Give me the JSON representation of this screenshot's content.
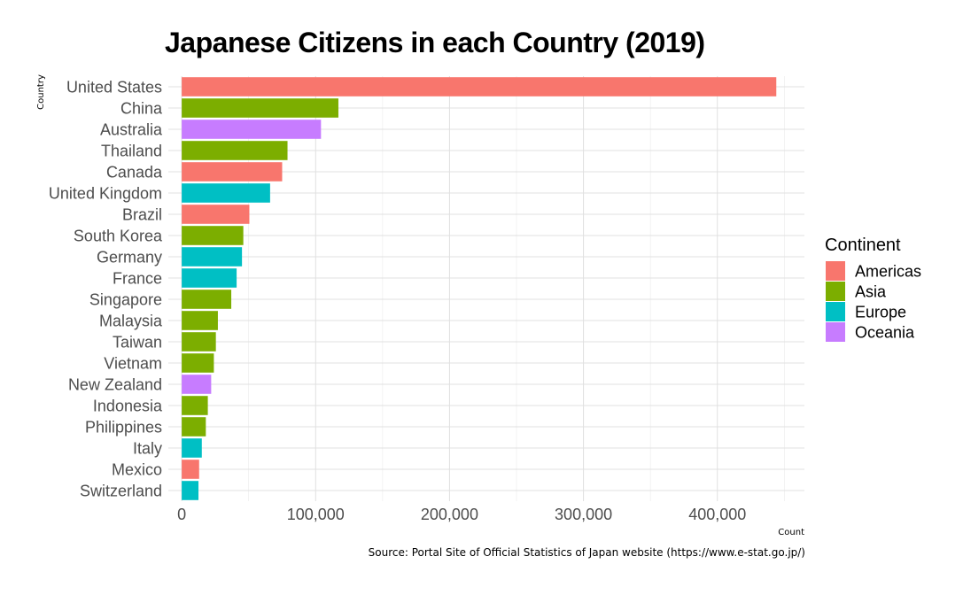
{
  "chart_data": {
    "type": "bar",
    "orientation": "horizontal",
    "title": "Japanese Citizens in each Country (2019)",
    "xlabel": "Count",
    "ylabel": "Country",
    "xlim": [
      -10000,
      465000
    ],
    "x_ticks": [
      0,
      100000,
      200000,
      300000,
      400000
    ],
    "x_tick_labels": [
      "0",
      "100,000",
      "200,000",
      "300,000",
      "400,000"
    ],
    "grid": true,
    "legend": {
      "title": "Continent",
      "position": "right",
      "entries": [
        {
          "name": "Americas",
          "color": "#F8766D"
        },
        {
          "name": "Asia",
          "color": "#7CAE00"
        },
        {
          "name": "Europe",
          "color": "#00BFC4"
        },
        {
          "name": "Oceania",
          "color": "#C77CFF"
        }
      ]
    },
    "categories": [
      "United States",
      "China",
      "Australia",
      "Thailand",
      "Canada",
      "United Kingdom",
      "Brazil",
      "South Korea",
      "Germany",
      "France",
      "Singapore",
      "Malaysia",
      "Taiwan",
      "Vietnam",
      "New Zealand",
      "Indonesia",
      "Philippines",
      "Italy",
      "Mexico",
      "Switzerland"
    ],
    "values": [
      444000,
      117000,
      104000,
      79000,
      75000,
      66000,
      50500,
      46000,
      45000,
      41000,
      37000,
      27000,
      25500,
      24000,
      22000,
      19500,
      18000,
      15000,
      13000,
      12500
    ],
    "continent": [
      "Americas",
      "Asia",
      "Oceania",
      "Asia",
      "Americas",
      "Europe",
      "Americas",
      "Asia",
      "Europe",
      "Europe",
      "Asia",
      "Asia",
      "Asia",
      "Asia",
      "Oceania",
      "Asia",
      "Asia",
      "Europe",
      "Americas",
      "Europe"
    ]
  },
  "caption": "Source: Portal Site of Official Statistics of Japan website (https://www.e-stat.go.jp/)"
}
